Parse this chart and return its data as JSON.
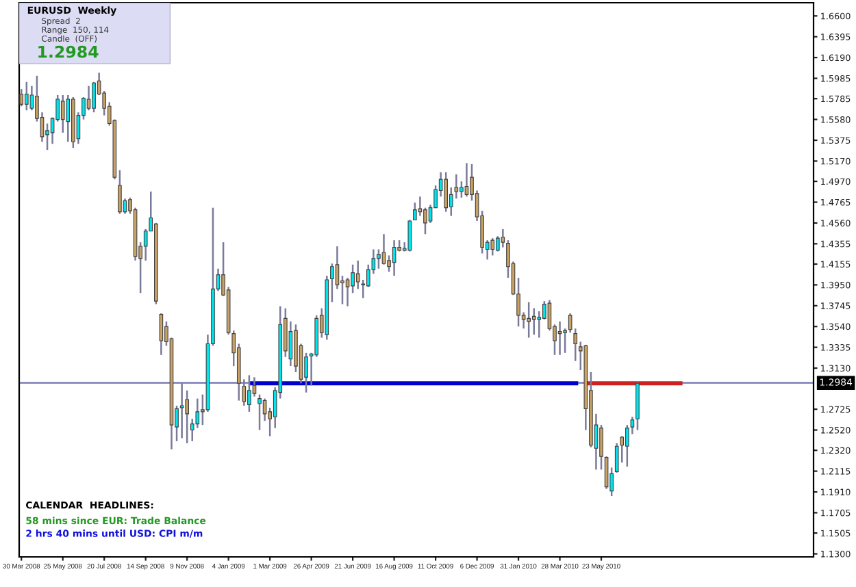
{
  "chart_data": {
    "type": "candlestick",
    "x": [
      "2008-03-30",
      "2008-04-06",
      "2008-04-13",
      "2008-04-20",
      "2008-04-27",
      "2008-05-04",
      "2008-05-11",
      "2008-05-18",
      "2008-05-25",
      "2008-06-01",
      "2008-06-08",
      "2008-06-15",
      "2008-06-22",
      "2008-06-29",
      "2008-07-06",
      "2008-07-13",
      "2008-07-20",
      "2008-07-27",
      "2008-08-03",
      "2008-08-10",
      "2008-08-17",
      "2008-08-24",
      "2008-08-31",
      "2008-09-07",
      "2008-09-14",
      "2008-09-21",
      "2008-09-28",
      "2008-10-05",
      "2008-10-12",
      "2008-10-19",
      "2008-10-26",
      "2008-11-02",
      "2008-11-09",
      "2008-11-16",
      "2008-11-23",
      "2008-11-30",
      "2008-12-07",
      "2008-12-14",
      "2008-12-21",
      "2008-12-28",
      "2009-01-04",
      "2009-01-11",
      "2009-01-18",
      "2009-01-25",
      "2009-02-01",
      "2009-02-08",
      "2009-02-15",
      "2009-02-22",
      "2009-03-01",
      "2009-03-08",
      "2009-03-15",
      "2009-03-22",
      "2009-03-29",
      "2009-04-05",
      "2009-04-12",
      "2009-04-19",
      "2009-04-26",
      "2009-05-03",
      "2009-05-10",
      "2009-05-17",
      "2009-05-24",
      "2009-05-31",
      "2009-06-07",
      "2009-06-14",
      "2009-06-21",
      "2009-06-28",
      "2009-07-05",
      "2009-07-12",
      "2009-07-19",
      "2009-07-26",
      "2009-08-02",
      "2009-08-09",
      "2009-08-16",
      "2009-08-23",
      "2009-08-30",
      "2009-09-06",
      "2009-09-13",
      "2009-09-20",
      "2009-09-27",
      "2009-10-04",
      "2009-10-11",
      "2009-10-18",
      "2009-10-25",
      "2009-11-01",
      "2009-11-08",
      "2009-11-15",
      "2009-11-22",
      "2009-11-29",
      "2009-12-06",
      "2009-12-13",
      "2009-12-20",
      "2009-12-27",
      "2010-01-03",
      "2010-01-10",
      "2010-01-17",
      "2010-01-24",
      "2010-01-31",
      "2010-02-07",
      "2010-02-14",
      "2010-02-21",
      "2010-02-28",
      "2010-03-07",
      "2010-03-14",
      "2010-03-21",
      "2010-03-28",
      "2010-04-04",
      "2010-04-11",
      "2010-04-18",
      "2010-04-25",
      "2010-05-02",
      "2010-05-09",
      "2010-05-16",
      "2010-05-23",
      "2010-05-30",
      "2010-06-06",
      "2010-06-13",
      "2010-06-20",
      "2010-06-27",
      "2010-07-04",
      "2010-07-11"
    ],
    "ohlc": [
      [
        1.583,
        1.588,
        1.571,
        1.573
      ],
      [
        1.573,
        1.595,
        1.567,
        1.583
      ],
      [
        1.569,
        1.591,
        1.567,
        1.582
      ],
      [
        1.581,
        1.601,
        1.556,
        1.559
      ],
      [
        1.56,
        1.565,
        1.536,
        1.541
      ],
      [
        1.543,
        1.554,
        1.528,
        1.547
      ],
      [
        1.545,
        1.56,
        1.534,
        1.559
      ],
      [
        1.558,
        1.582,
        1.556,
        1.578
      ],
      [
        1.576,
        1.582,
        1.545,
        1.558
      ],
      [
        1.556,
        1.582,
        1.536,
        1.578
      ],
      [
        1.578,
        1.58,
        1.53,
        1.536
      ],
      [
        1.539,
        1.565,
        1.534,
        1.562
      ],
      [
        1.562,
        1.58,
        1.558,
        1.579
      ],
      [
        1.578,
        1.591,
        1.567,
        1.569
      ],
      [
        1.569,
        1.595,
        1.565,
        1.594
      ],
      [
        1.596,
        1.604,
        1.582,
        1.583
      ],
      [
        1.584,
        1.586,
        1.562,
        1.569
      ],
      [
        1.571,
        1.575,
        1.552,
        1.554
      ],
      [
        1.557,
        1.558,
        1.499,
        1.501
      ],
      [
        1.493,
        1.508,
        1.465,
        1.467
      ],
      [
        1.467,
        1.48,
        1.465,
        1.478
      ],
      [
        1.479,
        1.481,
        1.465,
        1.468
      ],
      [
        1.469,
        1.471,
        1.419,
        1.423
      ],
      [
        1.433,
        1.437,
        1.387,
        1.421
      ],
      [
        1.433,
        1.45,
        1.419,
        1.448
      ],
      [
        1.448,
        1.487,
        1.448,
        1.461
      ],
      [
        1.455,
        1.456,
        1.376,
        1.379
      ],
      [
        1.366,
        1.367,
        1.326,
        1.34
      ],
      [
        1.354,
        1.359,
        1.335,
        1.339
      ],
      [
        1.342,
        1.343,
        1.233,
        1.257
      ],
      [
        1.255,
        1.276,
        1.241,
        1.273
      ],
      [
        1.274,
        1.298,
        1.244,
        1.276
      ],
      [
        1.282,
        1.291,
        1.239,
        1.268
      ],
      [
        1.252,
        1.263,
        1.241,
        1.258
      ],
      [
        1.258,
        1.283,
        1.254,
        1.27
      ],
      [
        1.272,
        1.287,
        1.257,
        1.27
      ],
      [
        1.272,
        1.346,
        1.27,
        1.337
      ],
      [
        1.337,
        1.471,
        1.335,
        1.391
      ],
      [
        1.391,
        1.411,
        1.389,
        1.405
      ],
      [
        1.405,
        1.437,
        1.384,
        1.385
      ],
      [
        1.39,
        1.393,
        1.346,
        1.348
      ],
      [
        1.347,
        1.35,
        1.315,
        1.328
      ],
      [
        1.333,
        1.337,
        1.281,
        1.298
      ],
      [
        1.295,
        1.302,
        1.276,
        1.28
      ],
      [
        1.277,
        1.306,
        1.27,
        1.291
      ],
      [
        1.296,
        1.304,
        1.285,
        1.288
      ],
      [
        1.278,
        1.287,
        1.252,
        1.283
      ],
      [
        1.281,
        1.283,
        1.261,
        1.268
      ],
      [
        1.27,
        1.274,
        1.246,
        1.263
      ],
      [
        1.265,
        1.294,
        1.254,
        1.291
      ],
      [
        1.289,
        1.374,
        1.283,
        1.356
      ],
      [
        1.362,
        1.372,
        1.324,
        1.33
      ],
      [
        1.322,
        1.359,
        1.315,
        1.349
      ],
      [
        1.35,
        1.356,
        1.309,
        1.315
      ],
      [
        1.335,
        1.337,
        1.298,
        1.302
      ],
      [
        1.304,
        1.328,
        1.289,
        1.324
      ],
      [
        1.325,
        1.328,
        1.296,
        1.327
      ],
      [
        1.326,
        1.365,
        1.324,
        1.362
      ],
      [
        1.365,
        1.372,
        1.343,
        1.348
      ],
      [
        1.346,
        1.404,
        1.341,
        1.4
      ],
      [
        1.401,
        1.416,
        1.378,
        1.413
      ],
      [
        1.415,
        1.433,
        1.391,
        1.395
      ],
      [
        1.399,
        1.404,
        1.376,
        1.397
      ],
      [
        1.4,
        1.402,
        1.374,
        1.393
      ],
      [
        1.394,
        1.415,
        1.387,
        1.407
      ],
      [
        1.406,
        1.419,
        1.391,
        1.398
      ],
      [
        1.395,
        1.4,
        1.382,
        1.396
      ],
      [
        1.394,
        1.415,
        1.393,
        1.41
      ],
      [
        1.41,
        1.43,
        1.406,
        1.421
      ],
      [
        1.421,
        1.43,
        1.411,
        1.425
      ],
      [
        1.427,
        1.445,
        1.415,
        1.416
      ],
      [
        1.419,
        1.424,
        1.408,
        1.413
      ],
      [
        1.417,
        1.439,
        1.404,
        1.432
      ],
      [
        1.432,
        1.439,
        1.428,
        1.429
      ],
      [
        1.429,
        1.437,
        1.428,
        1.431
      ],
      [
        1.429,
        1.459,
        1.428,
        1.458
      ],
      [
        1.459,
        1.476,
        1.459,
        1.469
      ],
      [
        1.47,
        1.482,
        1.463,
        1.467
      ],
      [
        1.469,
        1.471,
        1.445,
        1.456
      ],
      [
        1.458,
        1.474,
        1.456,
        1.471
      ],
      [
        1.471,
        1.493,
        1.471,
        1.489
      ],
      [
        1.488,
        1.506,
        1.482,
        1.499
      ],
      [
        1.499,
        1.506,
        1.467,
        1.471
      ],
      [
        1.472,
        1.491,
        1.463,
        1.484
      ],
      [
        1.491,
        1.504,
        1.48,
        1.487
      ],
      [
        1.487,
        1.497,
        1.481,
        1.491
      ],
      [
        1.492,
        1.515,
        1.482,
        1.484
      ],
      [
        1.501,
        1.514,
        1.478,
        1.484
      ],
      [
        1.485,
        1.488,
        1.458,
        1.462
      ],
      [
        1.463,
        1.468,
        1.426,
        1.432
      ],
      [
        1.43,
        1.439,
        1.42,
        1.437
      ],
      [
        1.439,
        1.441,
        1.424,
        1.43
      ],
      [
        1.429,
        1.443,
        1.428,
        1.441
      ],
      [
        1.442,
        1.45,
        1.432,
        1.437
      ],
      [
        1.436,
        1.439,
        1.402,
        1.413
      ],
      [
        1.416,
        1.418,
        1.385,
        1.386
      ],
      [
        1.386,
        1.402,
        1.354,
        1.365
      ],
      [
        1.365,
        1.368,
        1.352,
        1.361
      ],
      [
        1.362,
        1.378,
        1.343,
        1.359
      ],
      [
        1.364,
        1.372,
        1.346,
        1.361
      ],
      [
        1.361,
        1.369,
        1.343,
        1.363
      ],
      [
        1.362,
        1.379,
        1.361,
        1.376
      ],
      [
        1.377,
        1.38,
        1.35,
        1.352
      ],
      [
        1.354,
        1.356,
        1.326,
        1.34
      ],
      [
        1.349,
        1.359,
        1.326,
        1.347
      ],
      [
        1.348,
        1.352,
        1.328,
        1.35
      ],
      [
        1.365,
        1.367,
        1.348,
        1.351
      ],
      [
        1.347,
        1.352,
        1.32,
        1.337
      ],
      [
        1.334,
        1.339,
        1.311,
        1.33
      ],
      [
        1.335,
        1.336,
        1.252,
        1.273
      ],
      [
        1.291,
        1.309,
        1.235,
        1.237
      ],
      [
        1.234,
        1.268,
        1.213,
        1.257
      ],
      [
        1.254,
        1.257,
        1.213,
        1.226
      ],
      [
        1.225,
        1.226,
        1.194,
        1.196
      ],
      [
        1.192,
        1.215,
        1.187,
        1.209
      ],
      [
        1.211,
        1.239,
        1.21,
        1.236
      ],
      [
        1.245,
        1.246,
        1.22,
        1.237
      ],
      [
        1.236,
        1.257,
        1.216,
        1.254
      ],
      [
        1.255,
        1.265,
        1.248,
        1.262
      ],
      [
        1.263,
        1.299,
        1.252,
        1.298
      ]
    ],
    "series": [
      {
        "type": "line",
        "color": "#0000cc",
        "x": [
          "2009-02-05",
          "2010-04-19"
        ],
        "values": [
          1.298,
          1.298
        ]
      },
      {
        "type": "line",
        "color": "#cc2222",
        "x": [
          "2010-05-03",
          "2010-09-07"
        ],
        "values": [
          1.298,
          1.298
        ]
      }
    ],
    "ref_lines": [
      {
        "axis": "y",
        "value": 1.2984,
        "label": "1.2984",
        "color": "#7070b0"
      }
    ],
    "xlim": [
      "2008-03-27",
      "2011-03-06"
    ],
    "xticks": [
      {
        "value": "2008-03-30",
        "label": "30 Mar 2008"
      },
      {
        "value": "2008-05-25",
        "label": "25 May 2008"
      },
      {
        "value": "2008-07-20",
        "label": "20 Jul 2008"
      },
      {
        "value": "2008-09-14",
        "label": "14 Sep 2008"
      },
      {
        "value": "2008-11-09",
        "label": "9 Nov 2008"
      },
      {
        "value": "2009-01-04",
        "label": "4 Jan 2009"
      },
      {
        "value": "2009-03-01",
        "label": "1 Mar 2009"
      },
      {
        "value": "2009-04-26",
        "label": "26 Apr 2009"
      },
      {
        "value": "2009-06-21",
        "label": "21 Jun 2009"
      },
      {
        "value": "2009-08-16",
        "label": "16 Aug 2009"
      },
      {
        "value": "2009-10-11",
        "label": "11 Oct 2009"
      },
      {
        "value": "2009-12-06",
        "label": "6 Dec 2009"
      },
      {
        "value": "2010-01-31",
        "label": "31 Jan 2010"
      },
      {
        "value": "2010-03-28",
        "label": "28 Mar 2010"
      },
      {
        "value": "2010-05-23",
        "label": "23 May 2010"
      }
    ],
    "ylim": [
      1.127,
      1.673
    ],
    "yticks": [
      {
        "value": 1.13,
        "label": "1.1300"
      },
      {
        "value": 1.1505,
        "label": "1.1505"
      },
      {
        "value": 1.1705,
        "label": "1.1705"
      },
      {
        "value": 1.191,
        "label": "1.1910"
      },
      {
        "value": 1.2115,
        "label": "1.2115"
      },
      {
        "value": 1.232,
        "label": "1.2320"
      },
      {
        "value": 1.252,
        "label": "1.2520"
      },
      {
        "value": 1.2725,
        "label": "1.2725"
      },
      {
        "value": 1.313,
        "label": "1.3130"
      },
      {
        "value": 1.3335,
        "label": "1.3335"
      },
      {
        "value": 1.354,
        "label": "1.3540"
      },
      {
        "value": 1.3745,
        "label": "1.3745"
      },
      {
        "value": 1.395,
        "label": "1.3950"
      },
      {
        "value": 1.4155,
        "label": "1.4155"
      },
      {
        "value": 1.4355,
        "label": "1.4355"
      },
      {
        "value": 1.456,
        "label": "1.4560"
      },
      {
        "value": 1.4765,
        "label": "1.4765"
      },
      {
        "value": 1.497,
        "label": "1.4970"
      },
      {
        "value": 1.517,
        "label": "1.5170"
      },
      {
        "value": 1.5375,
        "label": "1.5375"
      },
      {
        "value": 1.558,
        "label": "1.5580"
      },
      {
        "value": 1.5785,
        "label": "1.5785"
      },
      {
        "value": 1.5985,
        "label": "1.5985"
      },
      {
        "value": 1.619,
        "label": "1.6190"
      },
      {
        "value": 1.6395,
        "label": "1.6395"
      },
      {
        "value": 1.66,
        "label": "1.6600"
      }
    ],
    "grid": false,
    "legend": false,
    "annotations": [
      "EURUSD  Weekly",
      "Spread  2",
      "Range  150, 114",
      "Candle  (OFF)",
      "1.2984",
      "CALENDAR  HEADLINES:",
      "58 mins since EUR: Trade Balance",
      "2 hrs 40 mins until USD: CPI m/m"
    ]
  }
}
